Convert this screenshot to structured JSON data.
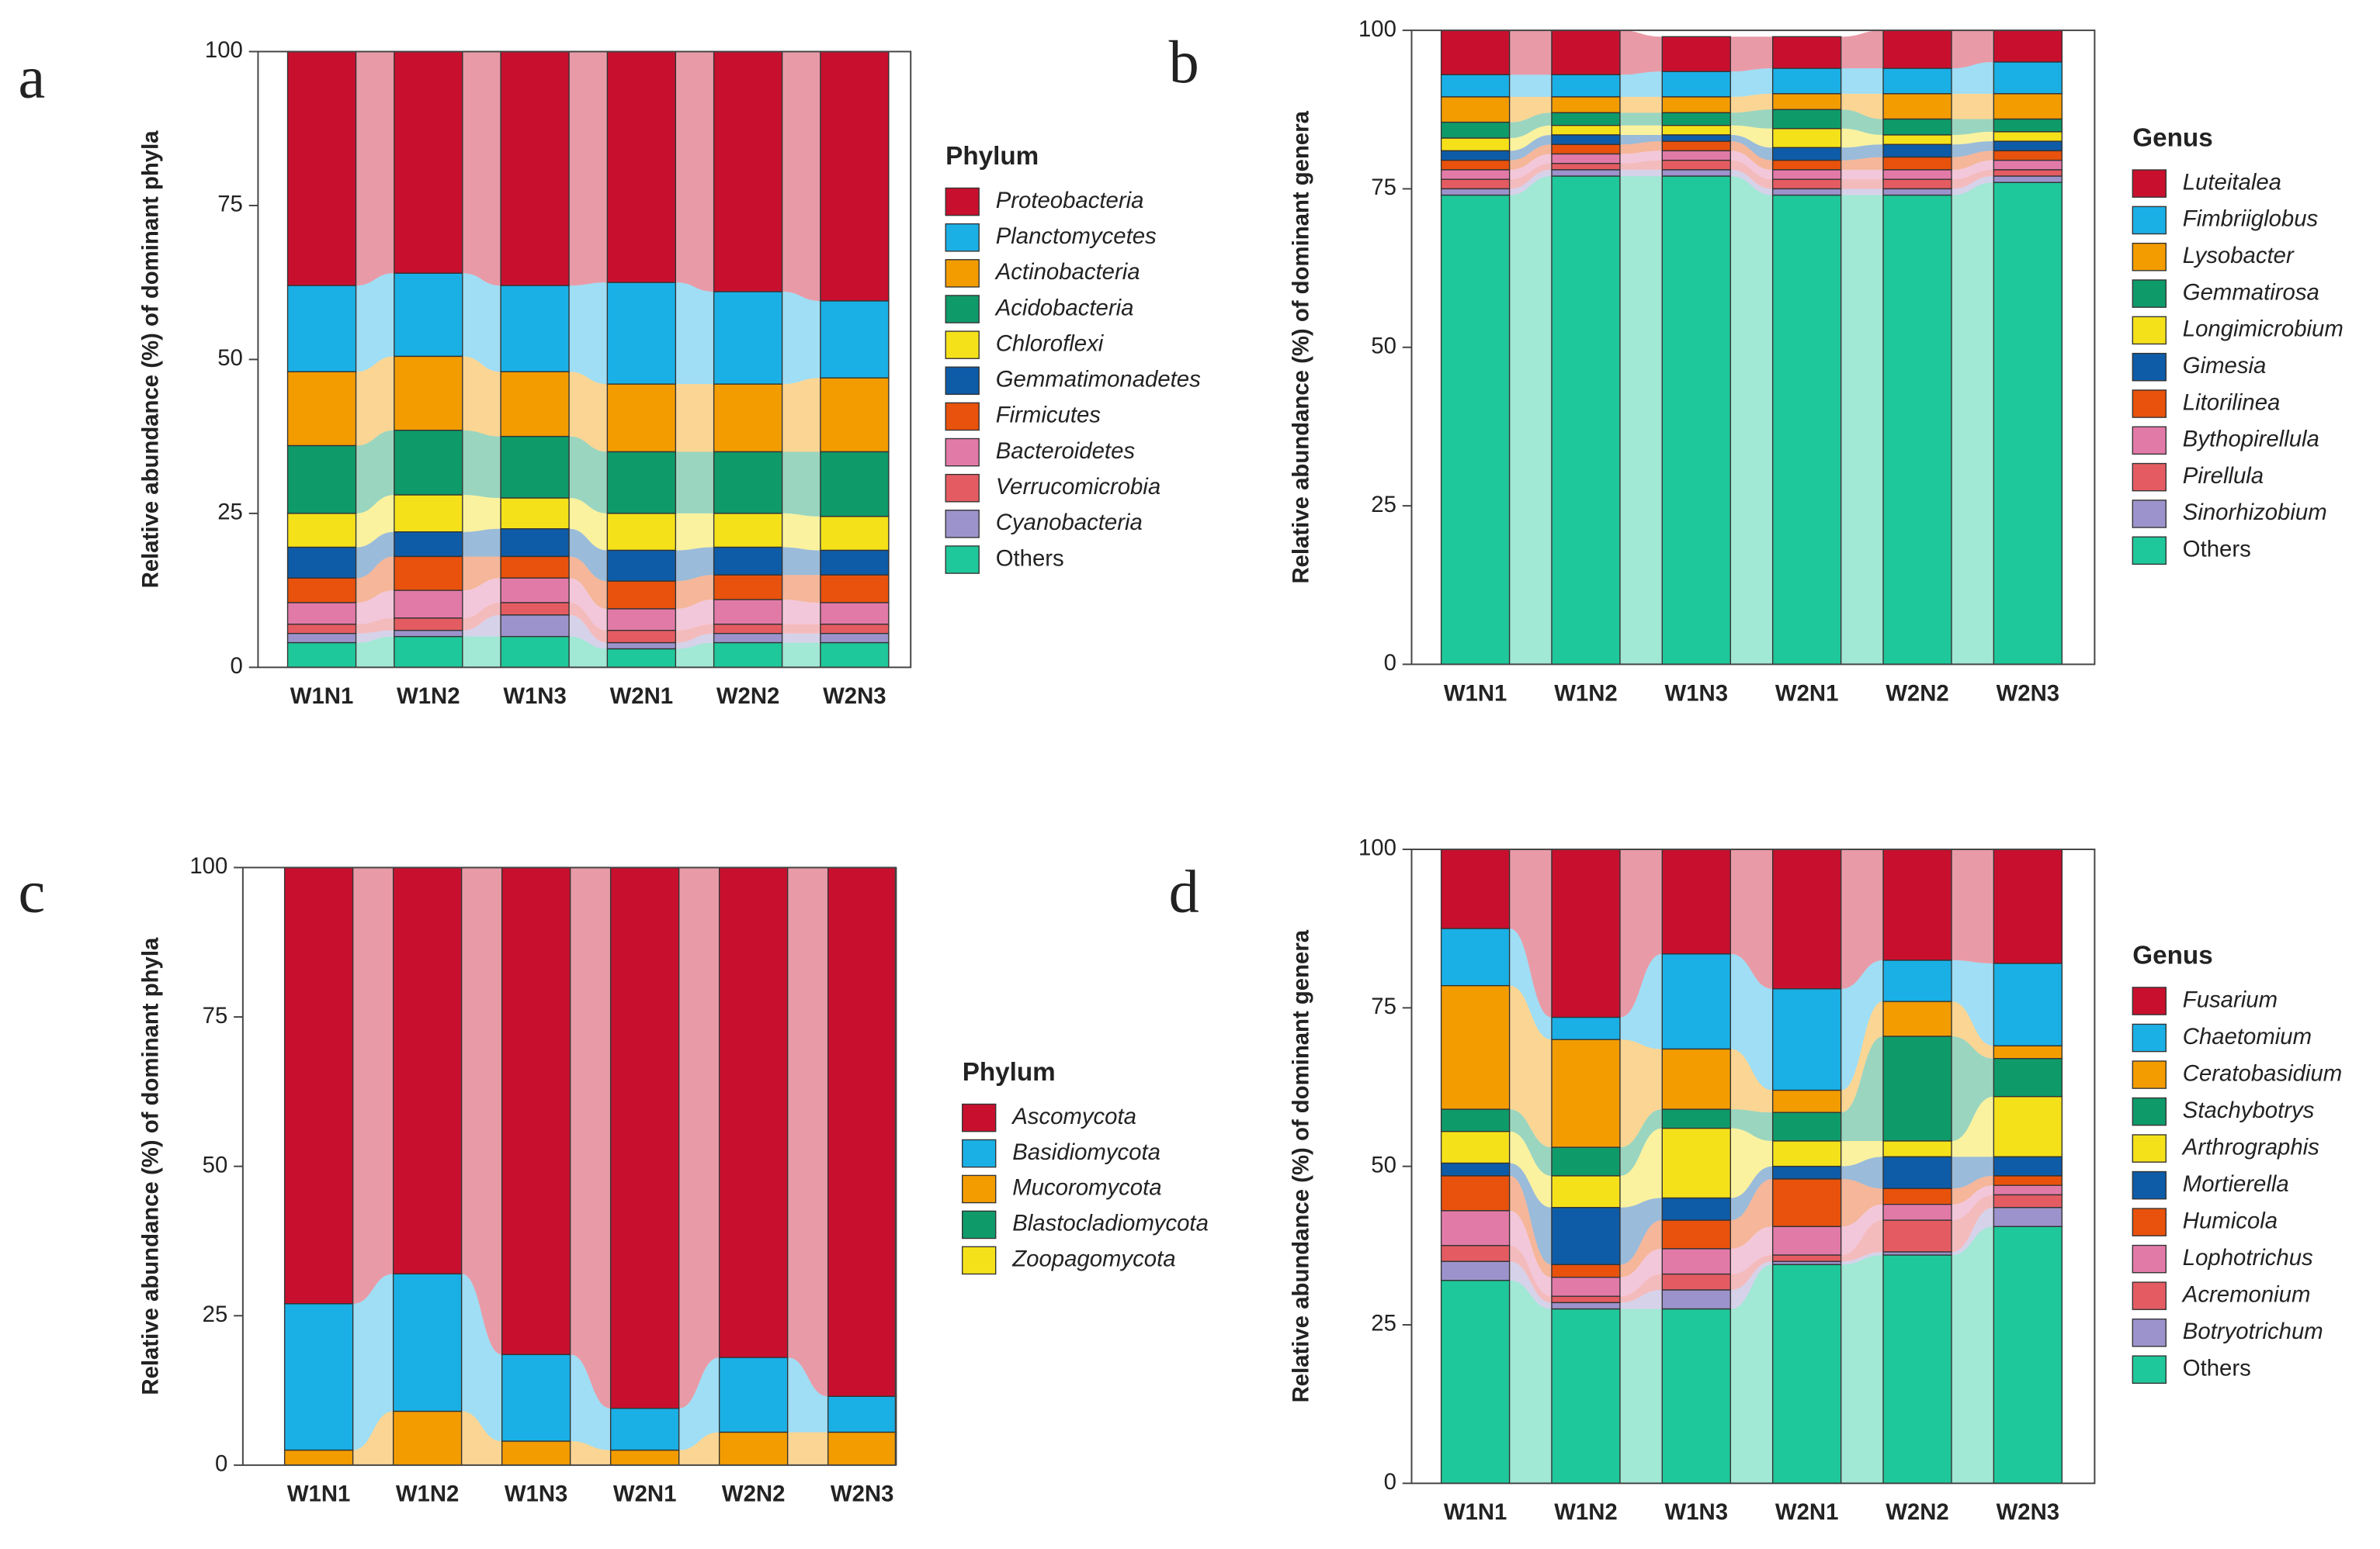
{
  "chart_data": [
    {
      "type": "stacked_bar",
      "panel_label": "a",
      "y_label": "Relative abundance (%) of dominant phyla",
      "legend_title": "Phylum",
      "categories": [
        "W1N1",
        "W1N2",
        "W1N3",
        "W2N1",
        "W2N2",
        "W2N3"
      ],
      "ylim": [
        0,
        100
      ],
      "yticks": [
        0,
        25,
        50,
        75,
        100
      ],
      "series": [
        {
          "name": "Proteobacteria",
          "color": "#c8102e",
          "italic": true,
          "values": [
            38,
            36,
            38,
            37.5,
            39,
            40.5
          ]
        },
        {
          "name": "Planctomycetes",
          "color": "#1ab0e6",
          "italic": true,
          "values": [
            14,
            13.5,
            14,
            16.5,
            15,
            12.5
          ]
        },
        {
          "name": "Actinobacteria",
          "color": "#f39c00",
          "italic": true,
          "values": [
            12,
            12,
            10.5,
            11,
            11,
            12
          ]
        },
        {
          "name": "Acidobacteria",
          "color": "#0f9a6a",
          "italic": true,
          "values": [
            11,
            10.5,
            10,
            10,
            10,
            10.5
          ]
        },
        {
          "name": "Chloroflexi",
          "color": "#f5e11a",
          "italic": true,
          "values": [
            5.5,
            6,
            5,
            6,
            5.5,
            5.5
          ]
        },
        {
          "name": "Gemmatimonadetes",
          "color": "#0e5ca8",
          "italic": true,
          "values": [
            5,
            4,
            4.5,
            5,
            4.5,
            4
          ]
        },
        {
          "name": "Firmicutes",
          "color": "#e8520c",
          "italic": true,
          "values": [
            4,
            5.5,
            3.5,
            4.5,
            4,
            4.5
          ]
        },
        {
          "name": "Bacteroidetes",
          "color": "#e27aa8",
          "italic": true,
          "values": [
            3.5,
            4.5,
            4,
            3.5,
            4,
            3.5
          ]
        },
        {
          "name": "Verrucomicrobia",
          "color": "#e45c62",
          "italic": true,
          "values": [
            1.5,
            2,
            2,
            2,
            1.5,
            1.5
          ]
        },
        {
          "name": "Cyanobacteria",
          "color": "#9d93cc",
          "italic": true,
          "values": [
            1.5,
            1,
            3.5,
            1,
            1.5,
            1.5
          ]
        },
        {
          "name": "Others",
          "color": "#1fc89a",
          "italic": false,
          "values": [
            4,
            5,
            5,
            3,
            4,
            4
          ]
        }
      ]
    },
    {
      "type": "stacked_bar",
      "panel_label": "b",
      "y_label": "Relative abundance (%) of dominant genera",
      "legend_title": "Genus",
      "categories": [
        "W1N1",
        "W1N2",
        "W1N3",
        "W2N1",
        "W2N2",
        "W2N3"
      ],
      "ylim": [
        0,
        100
      ],
      "yticks": [
        0,
        25,
        50,
        75,
        100
      ],
      "series": [
        {
          "name": "Luteitalea",
          "color": "#c8102e",
          "italic": true,
          "values": [
            7,
            7,
            5.5,
            5,
            6,
            5
          ]
        },
        {
          "name": "Fimbriiglobus",
          "color": "#1ab0e6",
          "italic": true,
          "values": [
            3.5,
            3.5,
            4,
            4,
            4,
            5
          ]
        },
        {
          "name": "Lysobacter",
          "color": "#f39c00",
          "italic": true,
          "values": [
            4,
            2.5,
            2.5,
            2.5,
            4,
            4
          ]
        },
        {
          "name": "Gemmatirosa",
          "color": "#0f9a6a",
          "italic": true,
          "values": [
            2.5,
            2,
            2,
            3,
            2.5,
            2
          ]
        },
        {
          "name": "Longimicrobium",
          "color": "#f5e11a",
          "italic": true,
          "values": [
            2,
            1.5,
            1.5,
            3,
            1.5,
            1.5
          ]
        },
        {
          "name": "Gimesia",
          "color": "#0e5ca8",
          "italic": true,
          "values": [
            1.5,
            1.5,
            1,
            2,
            2,
            1.5
          ]
        },
        {
          "name": "Litorilinea",
          "color": "#e8520c",
          "italic": true,
          "values": [
            1.5,
            1.5,
            1.5,
            1.5,
            2,
            1.5
          ]
        },
        {
          "name": "Bythopirellula",
          "color": "#e27aa8",
          "italic": true,
          "values": [
            1.5,
            1.5,
            1.5,
            1.5,
            1.5,
            1.5
          ]
        },
        {
          "name": "Pirellula",
          "color": "#e45c62",
          "italic": true,
          "values": [
            1.5,
            1,
            1.5,
            1.5,
            1.5,
            1
          ]
        },
        {
          "name": "Sinorhizobium",
          "color": "#9d93cc",
          "italic": true,
          "values": [
            1,
            1,
            1,
            1,
            1,
            1
          ]
        },
        {
          "name": "Others",
          "color": "#1fc89a",
          "italic": false,
          "values": [
            74,
            77,
            77,
            74,
            74,
            76
          ]
        }
      ]
    },
    {
      "type": "stacked_bar",
      "panel_label": "c",
      "y_label": "Relative abundance (%) of dominant phyla",
      "legend_title": "Phylum",
      "categories": [
        "W1N1",
        "W1N2",
        "W1N3",
        "W2N1",
        "W2N2",
        "W2N3"
      ],
      "ylim": [
        0,
        100
      ],
      "yticks": [
        0,
        25,
        50,
        75,
        100
      ],
      "series": [
        {
          "name": "Ascomycota",
          "color": "#c8102e",
          "italic": true,
          "values": [
            73,
            68,
            81.5,
            90.5,
            82,
            88.5
          ]
        },
        {
          "name": "Basidiomycota",
          "color": "#1ab0e6",
          "italic": true,
          "values": [
            24.5,
            23,
            14.5,
            7,
            12.5,
            6
          ]
        },
        {
          "name": "Mucoromycota",
          "color": "#f39c00",
          "italic": true,
          "values": [
            2.5,
            9,
            4,
            2.5,
            5.5,
            5.5
          ]
        },
        {
          "name": "Blastocladiomycota",
          "color": "#0f9a6a",
          "italic": true,
          "values": [
            0,
            0,
            0,
            0,
            0,
            0
          ]
        },
        {
          "name": "Zoopagomycota",
          "color": "#f5e11a",
          "italic": true,
          "values": [
            0,
            0,
            0,
            0,
            0,
            0
          ]
        }
      ]
    },
    {
      "type": "stacked_bar",
      "panel_label": "d",
      "y_label": "Relative abundance (%) of dominant genera",
      "legend_title": "Genus",
      "categories": [
        "W1N1",
        "W1N2",
        "W1N3",
        "W2N1",
        "W2N2",
        "W2N3"
      ],
      "ylim": [
        0,
        100
      ],
      "yticks": [
        0,
        25,
        50,
        75,
        100
      ],
      "series": [
        {
          "name": "Fusarium",
          "color": "#c8102e",
          "italic": true,
          "values": [
            12.5,
            26.5,
            16.5,
            22,
            17.5,
            18
          ]
        },
        {
          "name": "Chaetomium",
          "color": "#1ab0e6",
          "italic": true,
          "values": [
            9,
            3.5,
            15,
            16,
            6.5,
            13
          ]
        },
        {
          "name": "Ceratobasidium",
          "color": "#f39c00",
          "italic": true,
          "values": [
            19.5,
            17,
            9.5,
            3.5,
            5.5,
            2
          ]
        },
        {
          "name": "Stachybotrys",
          "color": "#0f9a6a",
          "italic": true,
          "values": [
            3.5,
            4.5,
            3,
            4.5,
            16.5,
            6
          ]
        },
        {
          "name": "Arthrographis",
          "color": "#f5e11a",
          "italic": true,
          "values": [
            5,
            5,
            11,
            4,
            2.5,
            9.5
          ]
        },
        {
          "name": "Mortierella",
          "color": "#0e5ca8",
          "italic": true,
          "values": [
            2,
            9,
            3.5,
            2,
            5,
            3
          ]
        },
        {
          "name": "Humicola",
          "color": "#e8520c",
          "italic": true,
          "values": [
            5.5,
            2,
            4.5,
            7.5,
            2.5,
            1.5
          ]
        },
        {
          "name": "Lophotrichus",
          "color": "#e27aa8",
          "italic": true,
          "values": [
            5.5,
            3,
            4,
            4.5,
            2.5,
            1.5
          ]
        },
        {
          "name": "Acremonium",
          "color": "#e45c62",
          "italic": true,
          "values": [
            2.5,
            1,
            2.5,
            1,
            5,
            2
          ]
        },
        {
          "name": "Botryotrichum",
          "color": "#9d93cc",
          "italic": true,
          "values": [
            3,
            1,
            3,
            0.5,
            0.5,
            3
          ]
        },
        {
          "name": "Others",
          "color": "#1fc89a",
          "italic": false,
          "values": [
            32,
            27.5,
            27.5,
            34.5,
            36,
            40.5
          ]
        }
      ]
    }
  ]
}
